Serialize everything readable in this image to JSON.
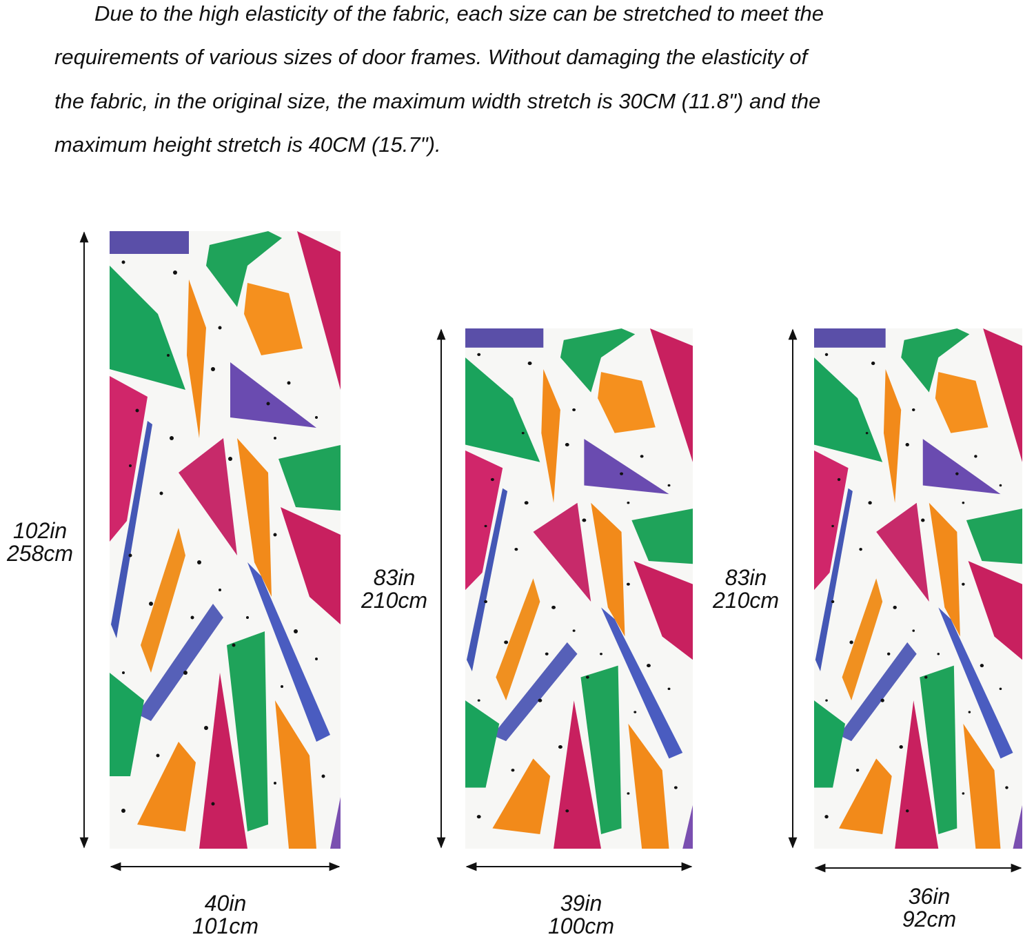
{
  "description": {
    "lines": [
      "Due to the high elasticity of the fabric, each size can be stretched to meet the",
      "requirements of various sizes of door frames. Without damaging the elasticity of",
      "the fabric, in the original size, the maximum width stretch is 30CM (11.8\") and the",
      "maximum height stretch is 40CM (15.7\")."
    ]
  },
  "panels": [
    {
      "height": [
        "102in",
        "258cm"
      ],
      "width": [
        "40in",
        "101cm"
      ]
    },
    {
      "height": [
        "83in",
        "210cm"
      ],
      "width": [
        "39in",
        "100cm"
      ]
    },
    {
      "height": [
        "83in",
        "210cm"
      ],
      "width": [
        "36in",
        "92cm"
      ]
    }
  ]
}
